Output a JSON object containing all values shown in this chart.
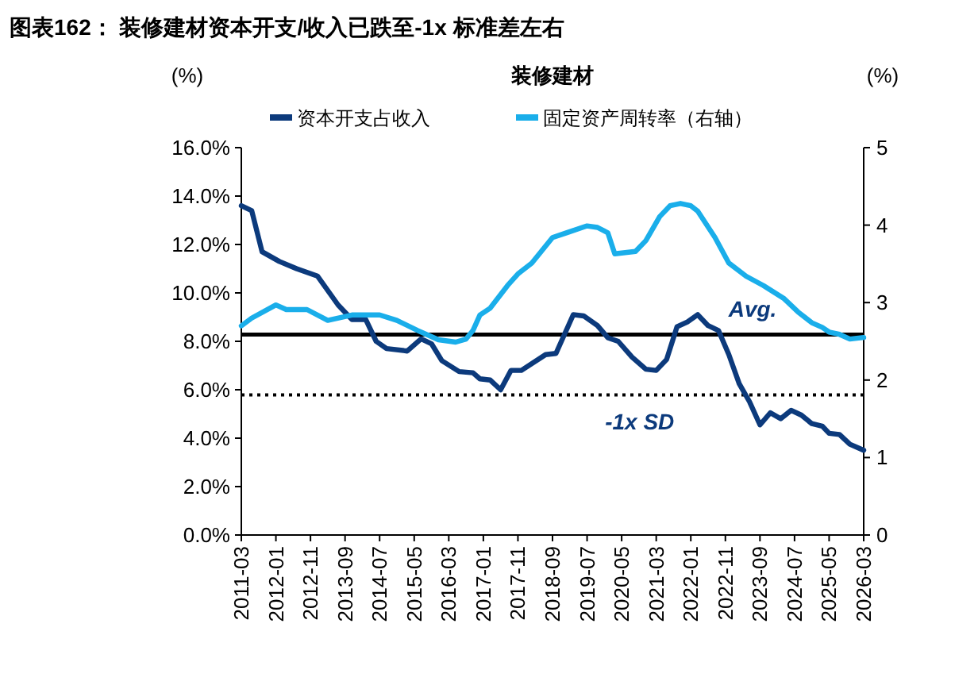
{
  "chart_data": {
    "type": "line",
    "title": "图表162：  装修建材资本开支/收入已跌至-1x 标准差左右",
    "subtitle": "装修建材",
    "ylabel": "(%)",
    "y2label": "(%)",
    "xlim": [
      "2011-03",
      "2026-03"
    ],
    "xticks": [
      "2011-03",
      "2012-01",
      "2012-11",
      "2013-09",
      "2014-07",
      "2015-05",
      "2016-03",
      "2017-01",
      "2017-11",
      "2018-09",
      "2019-07",
      "2020-05",
      "2021-03",
      "2022-01",
      "2022-11",
      "2023-09",
      "2024-07",
      "2025-05",
      "2026-03"
    ],
    "ylim": [
      0,
      16
    ],
    "yticks": [
      {
        "value": 0,
        "label": "0.0%"
      },
      {
        "value": 2,
        "label": "2.0%"
      },
      {
        "value": 4,
        "label": "4.0%"
      },
      {
        "value": 6,
        "label": "6.0%"
      },
      {
        "value": 8,
        "label": "8.0%"
      },
      {
        "value": 10,
        "label": "10.0%"
      },
      {
        "value": 12,
        "label": "12.0%"
      },
      {
        "value": 14,
        "label": "14.0%"
      },
      {
        "value": 16,
        "label": "16.0%"
      }
    ],
    "y2lim": [
      0,
      5
    ],
    "y2ticks": [
      0,
      1,
      2,
      3,
      4,
      5
    ],
    "legend": "top",
    "grid": false,
    "marker": "none",
    "line_style": "solid",
    "series": [
      {
        "name": "资本开支占收入",
        "color": "#0c3a7c",
        "x": [
          "2011-03",
          "2011-06",
          "2011-09",
          "2012-02",
          "2012-07",
          "2013-01",
          "2013-07",
          "2013-11",
          "2014-03",
          "2014-06",
          "2014-09",
          "2015-03",
          "2015-07",
          "2015-10",
          "2016-01",
          "2016-06",
          "2016-10",
          "2016-12",
          "2017-03",
          "2017-06",
          "2017-09",
          "2017-12",
          "2018-07",
          "2018-10",
          "2019-03",
          "2019-06",
          "2019-10",
          "2020-01",
          "2020-04",
          "2020-08",
          "2020-12",
          "2021-03",
          "2021-06",
          "2021-09",
          "2021-12",
          "2022-03",
          "2022-06",
          "2022-09",
          "2022-12",
          "2023-03",
          "2023-06",
          "2023-09",
          "2023-12",
          "2024-03",
          "2024-06",
          "2024-09",
          "2024-12",
          "2025-03",
          "2025-05",
          "2025-08",
          "2025-11",
          "2026-03"
        ],
        "values": [
          13.6,
          13.4,
          11.7,
          11.3,
          11.0,
          10.7,
          9.5,
          8.9,
          8.9,
          8.0,
          7.7,
          7.6,
          8.1,
          7.9,
          7.2,
          6.75,
          6.7,
          6.45,
          6.4,
          6.0,
          6.8,
          6.8,
          7.45,
          7.5,
          9.1,
          9.05,
          8.65,
          8.15,
          8.0,
          7.35,
          6.85,
          6.8,
          7.25,
          8.6,
          8.8,
          9.1,
          8.65,
          8.45,
          7.45,
          6.25,
          5.5,
          4.55,
          5.05,
          4.8,
          5.15,
          4.95,
          4.6,
          4.5,
          4.2,
          4.15,
          3.75,
          3.5
        ]
      },
      {
        "name": "固定资产周转率（右轴）",
        "color": "#1aaeea",
        "axis": "y2",
        "x": [
          "2011-03",
          "2011-06",
          "2012-01",
          "2012-04",
          "2012-10",
          "2013-04",
          "2013-11",
          "2014-07",
          "2014-12",
          "2015-06",
          "2015-12",
          "2016-05",
          "2016-08",
          "2016-10",
          "2016-12",
          "2017-03",
          "2017-08",
          "2017-11",
          "2018-03",
          "2018-09",
          "2019-01",
          "2019-07",
          "2019-10",
          "2020-01",
          "2020-03",
          "2020-09",
          "2020-12",
          "2021-04",
          "2021-07",
          "2021-10",
          "2022-01",
          "2022-03",
          "2022-08",
          "2022-12",
          "2023-05",
          "2023-10",
          "2024-04",
          "2024-08",
          "2024-12",
          "2025-03",
          "2025-05",
          "2025-08",
          "2025-11",
          "2026-03"
        ],
        "values": [
          2.7,
          2.8,
          2.97,
          2.91,
          2.91,
          2.77,
          2.84,
          2.84,
          2.77,
          2.64,
          2.52,
          2.49,
          2.53,
          2.64,
          2.84,
          2.93,
          3.22,
          3.37,
          3.51,
          3.84,
          3.9,
          3.99,
          3.97,
          3.9,
          3.63,
          3.66,
          3.8,
          4.11,
          4.25,
          4.28,
          4.25,
          4.18,
          3.84,
          3.51,
          3.34,
          3.22,
          3.05,
          2.88,
          2.74,
          2.68,
          2.62,
          2.59,
          2.53,
          2.55
        ]
      }
    ],
    "ref_lines": [
      {
        "axis": "y",
        "value": 8.28,
        "label": "Avg.",
        "color": "#000000",
        "line_style": "solid"
      },
      {
        "axis": "y",
        "value": 5.79,
        "label": "-1x SD",
        "color": "#000000",
        "line_style": "dotted"
      }
    ]
  }
}
